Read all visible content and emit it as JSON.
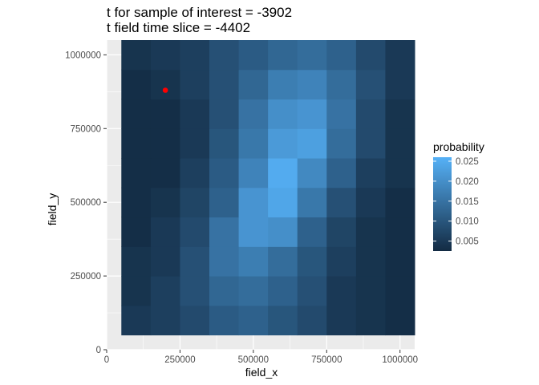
{
  "chart_data": {
    "type": "heatmap",
    "title": "t for sample of interest = -3902",
    "subtitle": "t field time slice = -4402",
    "xlabel": "field_x",
    "ylabel": "field_y",
    "xlim": [
      0,
      1050000
    ],
    "ylim": [
      0,
      1050000
    ],
    "x_ticks": [
      0,
      250000,
      500000,
      750000,
      1000000
    ],
    "x_tick_labels": [
      "0",
      "250000",
      "500000",
      "750000",
      "1000000"
    ],
    "y_ticks": [
      0,
      250000,
      500000,
      750000,
      1000000
    ],
    "y_tick_labels": [
      "0",
      "250000",
      "500000",
      "750000",
      "1000000"
    ],
    "grid": true,
    "cell_size": 100000,
    "x_centers": [
      100000,
      200000,
      300000,
      400000,
      500000,
      600000,
      700000,
      800000,
      900000,
      1000000
    ],
    "y_centers": [
      100000,
      200000,
      300000,
      400000,
      500000,
      600000,
      700000,
      800000,
      900000,
      1000000
    ],
    "values": [
      [
        0.005,
        0.006,
        0.008,
        0.011,
        0.012,
        0.01,
        0.008,
        0.005,
        0.004,
        0.003
      ],
      [
        0.004,
        0.006,
        0.009,
        0.013,
        0.014,
        0.012,
        0.009,
        0.005,
        0.004,
        0.003
      ],
      [
        0.004,
        0.005,
        0.009,
        0.015,
        0.017,
        0.014,
        0.01,
        0.006,
        0.004,
        0.003
      ],
      [
        0.003,
        0.005,
        0.008,
        0.015,
        0.021,
        0.02,
        0.012,
        0.007,
        0.004,
        0.003
      ],
      [
        0.003,
        0.004,
        0.007,
        0.012,
        0.021,
        0.024,
        0.016,
        0.009,
        0.005,
        0.003
      ],
      [
        0.003,
        0.003,
        0.006,
        0.011,
        0.018,
        0.025,
        0.019,
        0.012,
        0.006,
        0.004
      ],
      [
        0.003,
        0.003,
        0.005,
        0.01,
        0.016,
        0.022,
        0.023,
        0.014,
        0.008,
        0.004
      ],
      [
        0.003,
        0.003,
        0.005,
        0.009,
        0.015,
        0.02,
        0.021,
        0.015,
        0.008,
        0.004
      ],
      [
        0.003,
        0.004,
        0.006,
        0.009,
        0.013,
        0.017,
        0.018,
        0.014,
        0.009,
        0.005
      ],
      [
        0.004,
        0.005,
        0.006,
        0.009,
        0.011,
        0.013,
        0.014,
        0.012,
        0.008,
        0.005
      ]
    ],
    "point": {
      "x": 200000,
      "y": 880000,
      "color": "#ff0000"
    },
    "legend": {
      "title": "probability",
      "placement": "right",
      "ticks": [
        0.005,
        0.01,
        0.015,
        0.02,
        0.025
      ],
      "tick_labels": [
        "0.005",
        "0.010",
        "0.015",
        "0.020",
        "0.025"
      ],
      "min": 0.0025,
      "max": 0.026
    },
    "colors": {
      "low": "#132b43",
      "high": "#56b1f7",
      "panel": "#ebebeb",
      "grid_major": "#ffffff",
      "text": "#4d4d4d"
    }
  }
}
